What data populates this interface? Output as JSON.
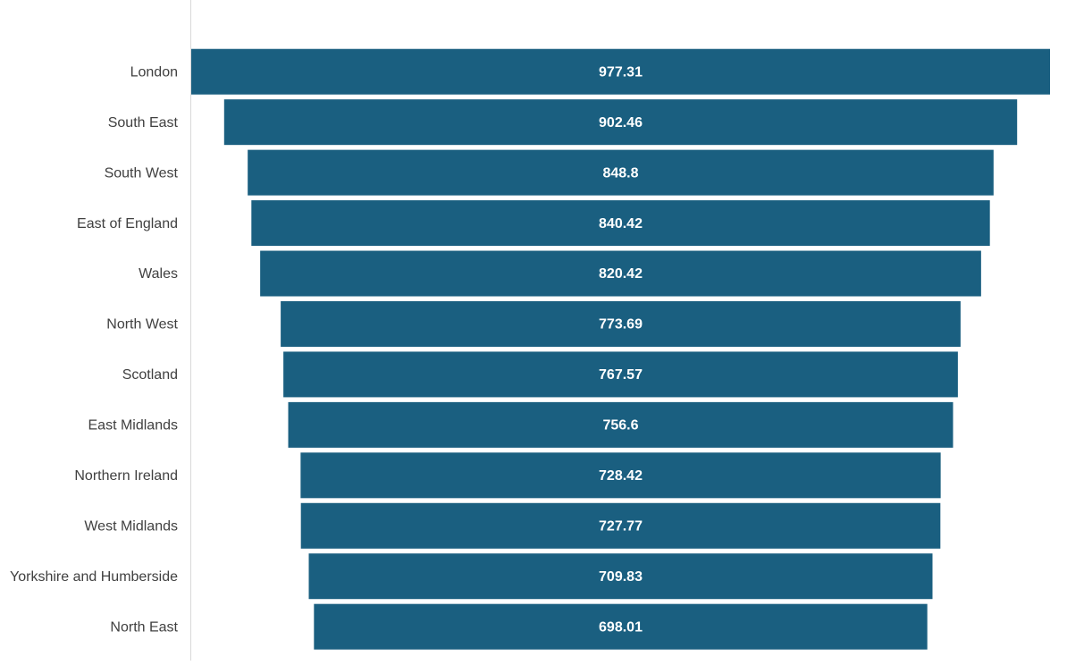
{
  "chart_data": {
    "type": "funnel",
    "categories": [
      "London",
      "South East",
      "South West",
      "East of England",
      "Wales",
      "North West",
      "Scotland",
      "East Midlands",
      "Northern Ireland",
      "West Midlands",
      "Yorkshire and Humberside",
      "North East"
    ],
    "values": [
      977.31,
      902.46,
      848.8,
      840.42,
      820.42,
      773.69,
      767.57,
      756.6,
      728.42,
      727.77,
      709.83,
      698.01
    ],
    "color": "#1a5f80"
  }
}
